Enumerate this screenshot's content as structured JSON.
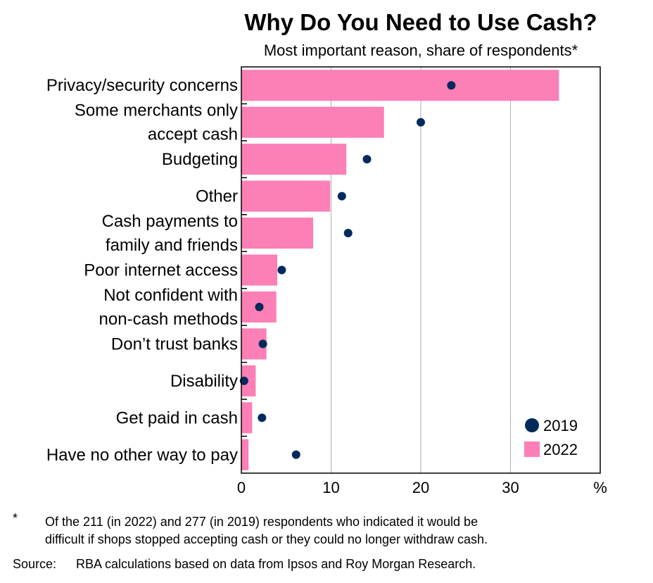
{
  "chart_data": {
    "type": "bar",
    "title": "Why Do You Need to Use Cash?",
    "subtitle": "Most important reason, share of respondents*",
    "categories": [
      [
        "Privacy/security concerns"
      ],
      [
        "Some merchants only",
        "accept cash"
      ],
      [
        "Budgeting"
      ],
      [
        "Other"
      ],
      [
        "Cash payments to",
        "family and friends"
      ],
      [
        "Poor internet access"
      ],
      [
        "Not confident with",
        "non-cash methods"
      ],
      [
        "Don’t trust banks"
      ],
      [
        "Disability"
      ],
      [
        "Get paid in cash"
      ],
      [
        "Have no other way to pay"
      ]
    ],
    "series": [
      {
        "name": "2022",
        "type": "bar",
        "color": "#fc7fb6",
        "values": [
          35.4,
          15.9,
          11.7,
          9.9,
          8.0,
          4.0,
          3.9,
          2.8,
          1.6,
          1.2,
          0.8
        ]
      },
      {
        "name": "2019",
        "type": "dot",
        "color": "#002a5c",
        "values": [
          23.4,
          20.0,
          14.0,
          11.2,
          11.9,
          4.5,
          2.0,
          2.4,
          0.3,
          2.3,
          6.1
        ]
      }
    ],
    "xlim": [
      0,
      40
    ],
    "xticks": [
      "0",
      "10",
      "20",
      "30"
    ],
    "xunit": "%",
    "legend": {
      "position": "bottom-right",
      "items": [
        "2019",
        "2022"
      ]
    },
    "gridlines": true
  },
  "footnote": {
    "marker": "*",
    "line1": "Of the 211 (in 2022) and 277 (in 2019) respondents who indicated it would be",
    "line2": "difficult if shops stopped accepting cash or they could no longer withdraw cash."
  },
  "source": {
    "label": "Source:",
    "text": "RBA calculations based on data from Ipsos and Roy Morgan Research."
  }
}
